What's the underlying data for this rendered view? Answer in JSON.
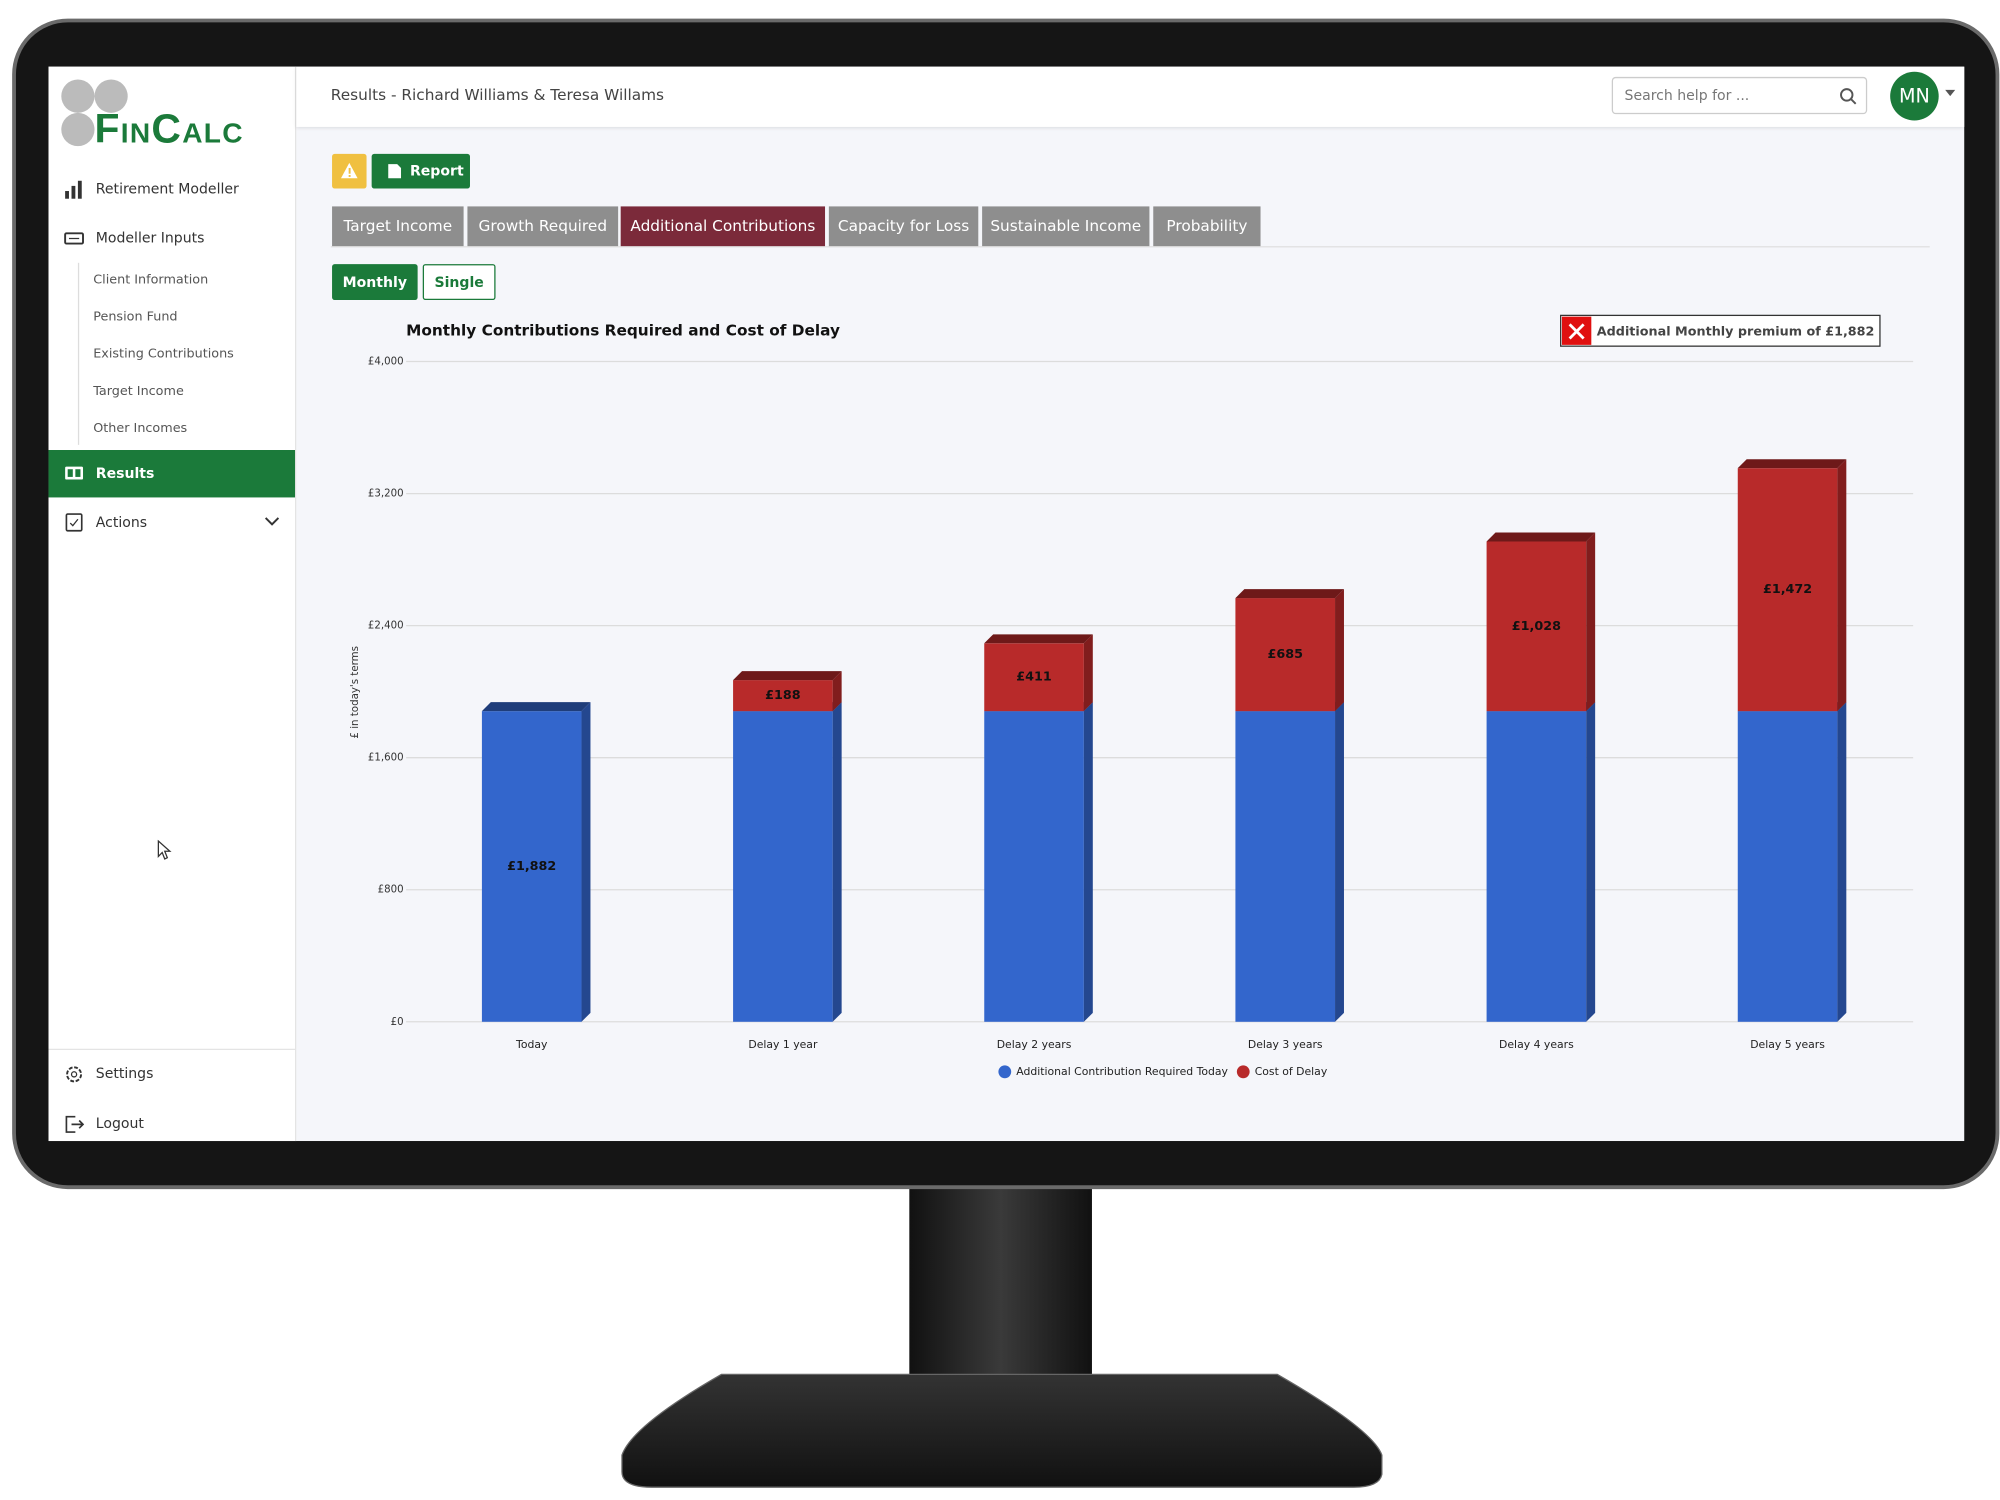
{
  "sidebar": {
    "logo": "FinCalc",
    "menu": [
      "Retirement Modeller",
      "Modeller Inputs"
    ],
    "submenu": [
      "Client Information",
      "Pension Fund",
      "Existing Contributions",
      "Target Income",
      "Other Incomes"
    ],
    "results": "Results",
    "actions": "Actions",
    "settings": "Settings",
    "logout": "Logout"
  },
  "header": {
    "title": "Results - Richard Williams & Teresa Willams",
    "search_placeholder": "Search help for ...",
    "avatar": "MN"
  },
  "toolbar": {
    "report": "Report"
  },
  "tabs": [
    "Target Income",
    "Growth Required",
    "Additional Contributions",
    "Capacity for Loss",
    "Sustainable Income",
    "Probability"
  ],
  "active_tab": 2,
  "modes": [
    "Monthly",
    "Single"
  ],
  "active_mode": 0,
  "chart_data": {
    "type": "stacked-bar",
    "title": "Monthly Contributions Required and Cost of Delay",
    "badge": "Additional Monthly premium of £1,882",
    "y_label": "£ in today's terms",
    "categories": [
      "Today",
      "Delay 1 year",
      "Delay 2 years",
      "Delay 3 years",
      "Delay 4 years",
      "Delay 5 years"
    ],
    "series": [
      {
        "name": "Additional Contribution Required Today",
        "color": "#3366cc",
        "values": [
          1882,
          1882,
          1882,
          1882,
          1882,
          1882
        ],
        "value_labels": [
          "£1,882",
          null,
          null,
          null,
          null,
          null
        ]
      },
      {
        "name": "Cost of Delay",
        "color": "#b82a2a",
        "values": [
          null,
          188,
          411,
          685,
          1028,
          1472
        ],
        "value_labels": [
          null,
          "£188",
          "£411",
          "£685",
          "£1,028",
          "£1,472"
        ]
      }
    ],
    "ylim": [
      0,
      4000
    ],
    "yticks": [
      {
        "value": 0,
        "label": "£0"
      },
      {
        "value": 800,
        "label": "£800"
      },
      {
        "value": 1600,
        "label": "£1,600"
      },
      {
        "value": 2400,
        "label": "£2,400"
      },
      {
        "value": 3200,
        "label": "£3,200"
      },
      {
        "value": 4000,
        "label": "£4,000"
      }
    ],
    "grid": true,
    "legend": "bottom"
  }
}
